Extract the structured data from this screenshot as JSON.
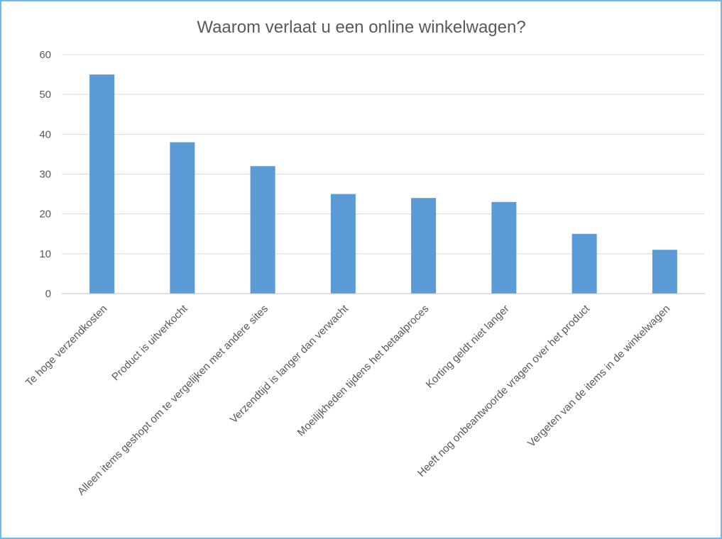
{
  "chart_data": {
    "type": "bar",
    "title": "Waarom verlaat u een online winkelwagen?",
    "categories": [
      "Te hoge verzendkosten",
      "Product is uitverkocht",
      "Alleen items geshopt om te vergelijken met andere sites",
      "Verzendtijd is langer dan verwacht",
      "Moeilijkheden tijdens het betaalproces",
      "Korting geldt niet langer",
      "Heeft nog onbeantwoorde vragen over het product",
      "Vergeten van de items in de winkelwagen"
    ],
    "values": [
      55,
      38,
      32,
      25,
      24,
      23,
      15,
      11
    ],
    "ylim": [
      0,
      60
    ],
    "yticks": [
      0,
      10,
      20,
      30,
      40,
      50,
      60
    ],
    "grid": true,
    "legend": "none",
    "bar_color": "#5b9bd5"
  }
}
